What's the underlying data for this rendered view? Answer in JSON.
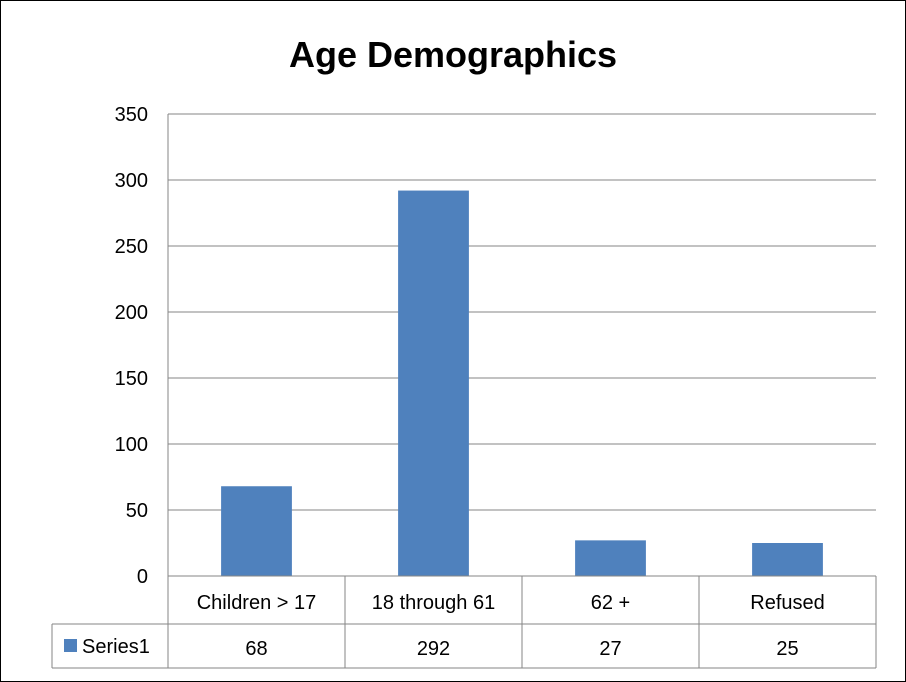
{
  "chart_data": {
    "type": "bar",
    "title": "Age Demographics",
    "categories": [
      "Children > 17",
      "18 through 61",
      "62 +",
      "Refused"
    ],
    "series": [
      {
        "name": "Series1",
        "values": [
          68,
          292,
          27,
          25
        ],
        "color": "#4f81bd"
      }
    ],
    "ylim": [
      0,
      350
    ],
    "yticks": [
      0,
      50,
      100,
      150,
      200,
      250,
      300,
      350
    ],
    "grid": true,
    "legend": "data-table"
  }
}
